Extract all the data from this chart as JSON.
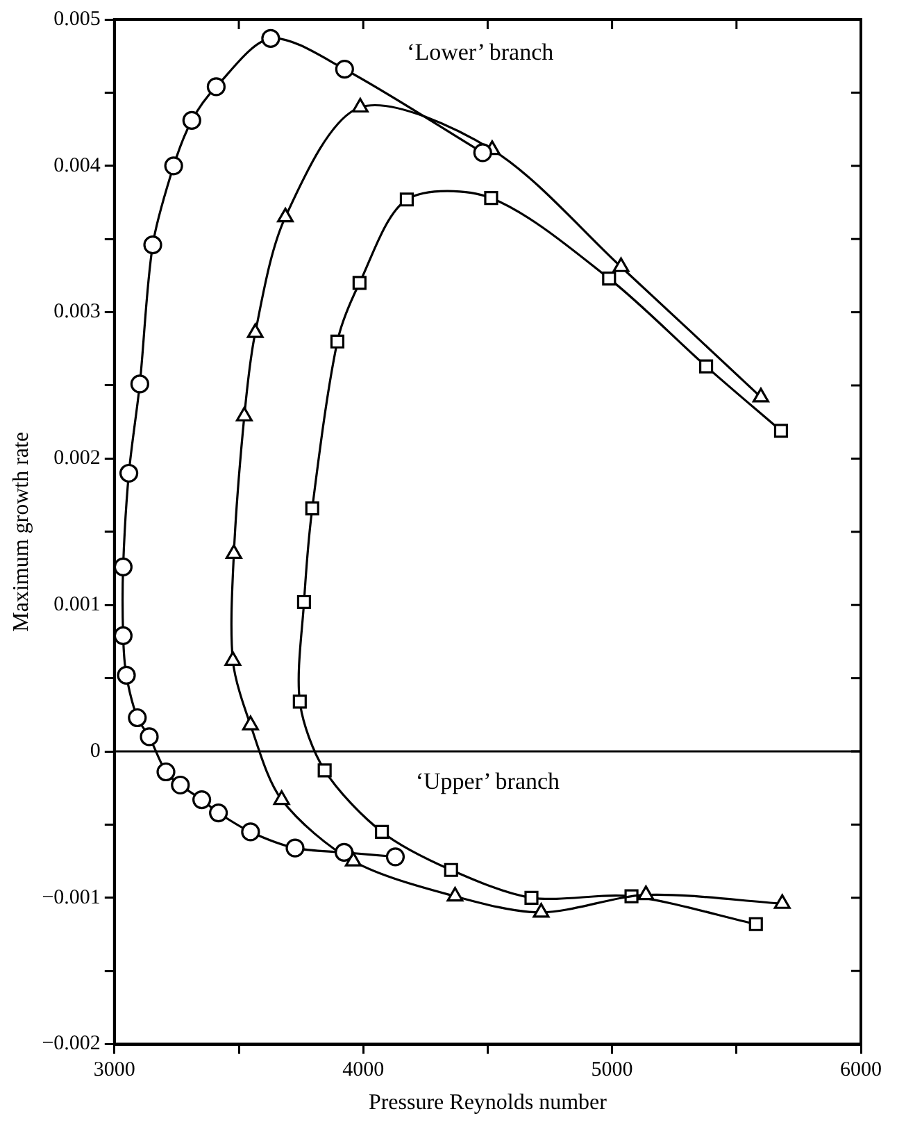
{
  "chart_data": {
    "type": "line",
    "xlabel": "Pressure Reynolds number",
    "ylabel": "Maximum growth rate",
    "xlim": [
      3000,
      6000
    ],
    "xticks": [
      3000,
      {
        "value": 3500,
        "label": null
      },
      4000,
      {
        "value": 4500,
        "label": null
      },
      5000,
      {
        "value": 5500,
        "label": null
      },
      6000
    ],
    "ylim": [
      -0.002,
      0.005
    ],
    "yticks": [
      {
        "value": -0.002,
        "label": "−0.002"
      },
      {
        "value": -0.0015,
        "label": null
      },
      {
        "value": -0.001,
        "label": "−0.001"
      },
      {
        "value": -0.0005,
        "label": null
      },
      0,
      {
        "value": 0.0005,
        "label": null
      },
      0.001,
      {
        "value": 0.0015,
        "label": null
      },
      0.002,
      {
        "value": 0.0025,
        "label": null
      },
      0.003,
      {
        "value": 0.0035,
        "label": null
      },
      0.004,
      {
        "value": 0.0045,
        "label": null
      },
      0.005
    ],
    "grid": false,
    "legend": false,
    "line_style": "solid",
    "ref_lines": [
      {
        "axis": "y",
        "value": 0,
        "color": "#000000"
      }
    ],
    "annotations": [
      "‘Lower’ branch",
      "‘Upper’ branch"
    ],
    "series": [
      {
        "color": "#000000",
        "marker": "circle",
        "x": [
          4129,
          3923,
          3726,
          3547,
          3418,
          3351,
          3265,
          3207,
          3140,
          3092,
          3048,
          3035,
          3035,
          3058,
          3102,
          3154,
          3238,
          3311,
          3409,
          3628,
          3925,
          4480
        ],
        "values": [
          -0.00072,
          -0.00069,
          -0.00066,
          -0.00055,
          -0.00042,
          -0.00033,
          -0.00023,
          -0.00014,
          0.0001,
          0.00023,
          0.00052,
          0.00079,
          0.00126,
          0.0019,
          0.00251,
          0.00346,
          0.004,
          0.00431,
          0.00454,
          0.00487,
          0.00466,
          0.00409
        ]
      },
      {
        "color": "#000000",
        "marker": "triangle",
        "x": [
          5684,
          5136,
          4715,
          4369,
          3960,
          3672,
          3547,
          3476,
          3480,
          3522,
          3566,
          3687,
          3988,
          4518,
          5036,
          5598
        ],
        "values": [
          -0.00104,
          -0.00098,
          -0.0011,
          -0.00099,
          -0.00075,
          -0.00033,
          0.00018,
          0.00062,
          0.00135,
          0.00229,
          0.00286,
          0.00365,
          0.0044,
          0.00411,
          0.00331,
          0.00242
        ]
      },
      {
        "color": "#000000",
        "marker": "square",
        "x": [
          5578,
          5078,
          4676,
          4353,
          4075,
          3845,
          3745,
          3762,
          3795,
          3896,
          3985,
          4175,
          4514,
          4988,
          5378,
          5679
        ],
        "values": [
          -0.00118,
          -0.00099,
          -0.001,
          -0.00081,
          -0.00055,
          -0.00013,
          0.00034,
          0.00102,
          0.00166,
          0.0028,
          0.0032,
          0.00377,
          0.00378,
          0.00323,
          0.00263,
          0.00219
        ]
      }
    ]
  }
}
